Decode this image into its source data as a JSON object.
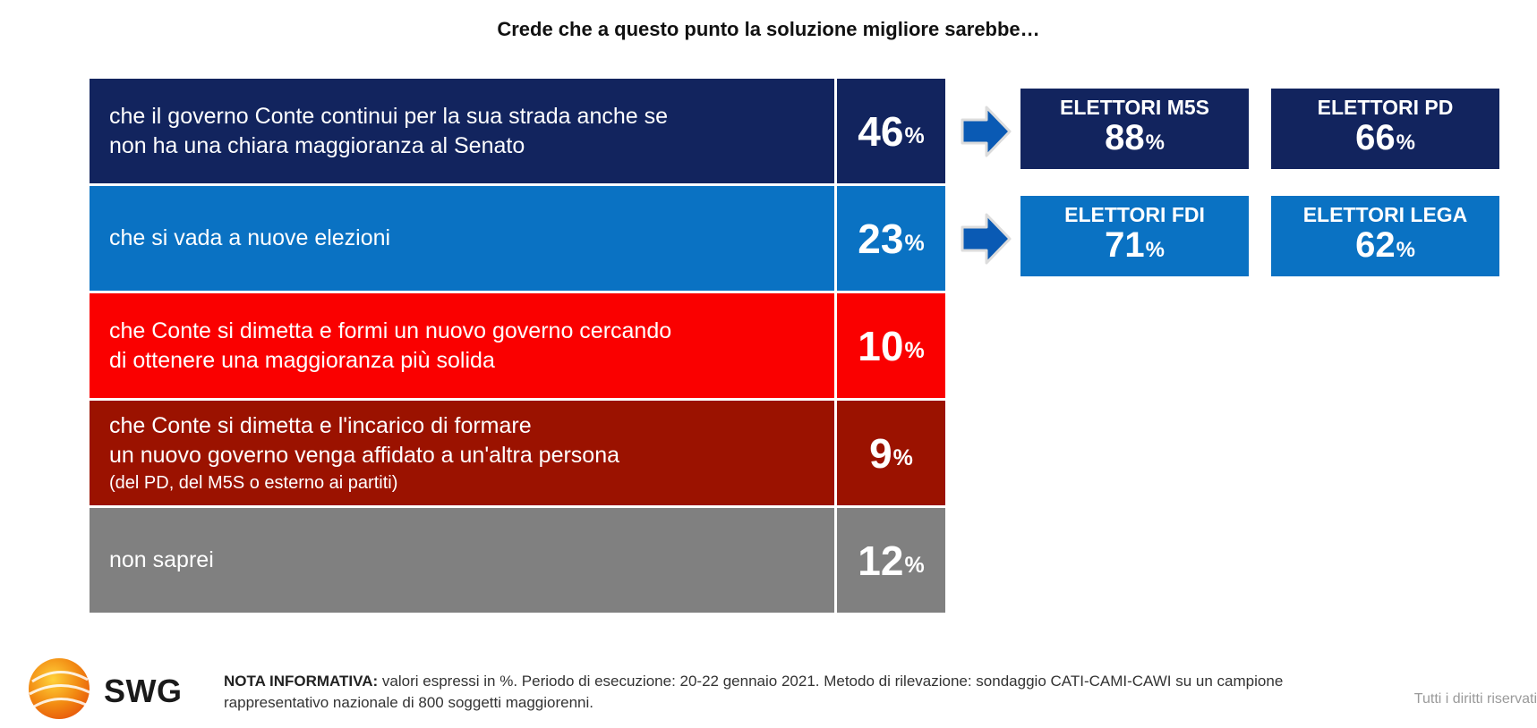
{
  "chart_data": {
    "type": "table",
    "title": "Crede che a questo punto la soluzione migliore sarebbe…",
    "rows": [
      {
        "label_lines": [
          "che il governo Conte continui per la sua strada anche se",
          "non ha una chiara maggioranza al Senato"
        ],
        "note": "",
        "value": "46",
        "unit": "%",
        "color": "#12245e"
      },
      {
        "label_lines": [
          "che si vada a nuove elezioni"
        ],
        "note": "",
        "value": "23",
        "unit": "%",
        "color": "#0a72c3"
      },
      {
        "label_lines": [
          "che Conte si dimetta e formi un nuovo governo cercando",
          "di ottenere una maggioranza più solida"
        ],
        "note": "",
        "value": "10",
        "unit": "%",
        "color": "#fa0000"
      },
      {
        "label_lines": [
          "che Conte si dimetta e l'incarico di formare",
          "un nuovo governo venga affidato a un'altra persona"
        ],
        "note": "(del PD, del M5S o esterno ai partiti)",
        "value": "9",
        "unit": "%",
        "color": "#9b1200"
      },
      {
        "label_lines": [
          "non saprei"
        ],
        "note": "",
        "value": "12",
        "unit": "%",
        "color": "#808080"
      }
    ],
    "breakdowns": [
      {
        "row": 0,
        "color": "#12245e",
        "boxes": [
          {
            "label": "ELETTORI M5S",
            "value": "88",
            "unit": "%"
          },
          {
            "label": "ELETTORI PD",
            "value": "66",
            "unit": "%"
          }
        ]
      },
      {
        "row": 1,
        "color": "#0a72c3",
        "boxes": [
          {
            "label": "ELETTORI FDI",
            "value": "71",
            "unit": "%"
          },
          {
            "label": "ELETTORI LEGA",
            "value": "62",
            "unit": "%"
          }
        ]
      }
    ]
  },
  "footer": {
    "logo_text": "SWG",
    "nota_label": "NOTA INFORMATIVA:",
    "nota_text": " valori espressi in %. Periodo di esecuzione: 20-22 gennaio 2021. Metodo di rilevazione: sondaggio CATI-CAMI-CAWI su un campione rappresentativo nazionale di 800 soggetti maggiorenni.",
    "rights": "Tutti i diritti riservati"
  },
  "colors": {
    "arrow_fill": "#0a5ab4"
  }
}
